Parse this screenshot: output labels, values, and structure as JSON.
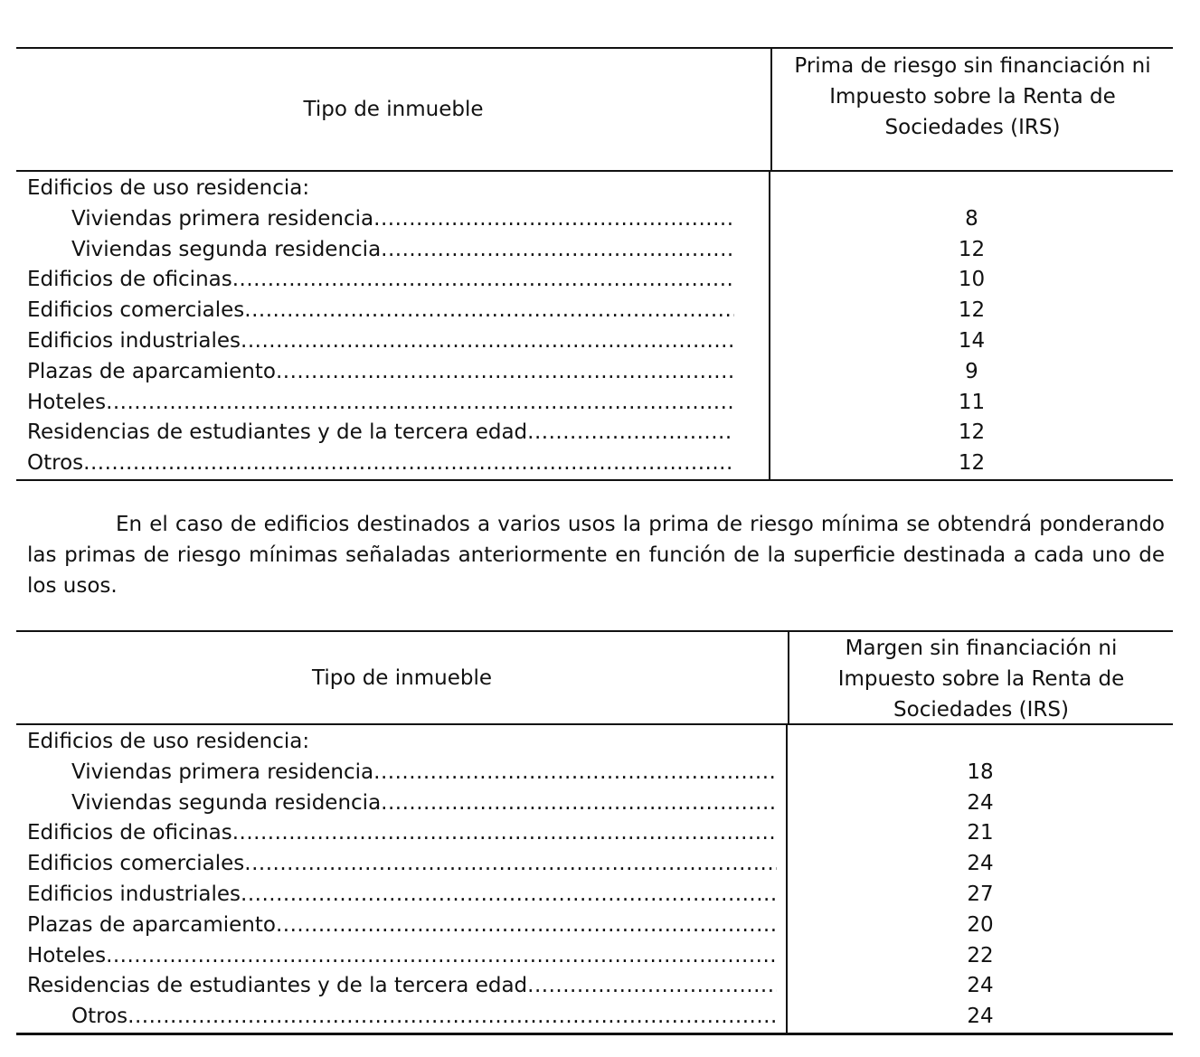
{
  "table1": {
    "header_col1": "Tipo de inmueble",
    "header_col2": "Prima de riesgo sin financiación ni Impuesto sobre la Renta de Sociedades (IRS)",
    "rows": [
      {
        "label": "Edificios de uso residencia:",
        "value": "",
        "leader": false,
        "indent": false
      },
      {
        "label": "Viviendas primera residencia",
        "value": "8",
        "leader": true,
        "indent": true
      },
      {
        "label": "Viviendas segunda residencia",
        "value": "12",
        "leader": true,
        "indent": true
      },
      {
        "label": "Edificios de oficinas",
        "value": "10",
        "leader": true,
        "indent": false
      },
      {
        "label": "Edificios comerciales",
        "value": "12",
        "leader": true,
        "indent": false
      },
      {
        "label": "Edificios industriales",
        "value": "14",
        "leader": true,
        "indent": false
      },
      {
        "label": "Plazas de aparcamiento",
        "value": "9",
        "leader": true,
        "indent": false
      },
      {
        "label": "Hoteles",
        "value": "11",
        "leader": true,
        "indent": false
      },
      {
        "label": "Residencias de estudiantes y de la tercera edad",
        "value": "12",
        "leader": true,
        "indent": false
      },
      {
        "label": "Otros",
        "value": "12",
        "leader": true,
        "indent": false
      }
    ]
  },
  "paragraph": "En el caso de edificios destinados a varios usos la prima de riesgo mínima se obtendrá ponderando las primas de riesgo mínimas señaladas anteriormente en función de la superficie destinada a cada uno de los usos.",
  "table2": {
    "header_col1": "Tipo de inmueble",
    "header_col2": "Margen sin financiación ni Impuesto sobre la Renta de Sociedades (IRS)",
    "rows": [
      {
        "label": "Edificios de uso residencia:",
        "value": "",
        "leader": false,
        "indent": false
      },
      {
        "label": "Viviendas primera residencia",
        "value": "18",
        "leader": true,
        "indent": true
      },
      {
        "label": "Viviendas segunda residencia",
        "value": "24",
        "leader": true,
        "indent": true
      },
      {
        "label": "Edificios de oficinas",
        "value": "21",
        "leader": true,
        "indent": false
      },
      {
        "label": "Edificios comerciales",
        "value": "24",
        "leader": true,
        "indent": false
      },
      {
        "label": "Edificios industriales",
        "value": "27",
        "leader": true,
        "indent": false
      },
      {
        "label": "Plazas de aparcamiento",
        "value": "20",
        "leader": true,
        "indent": false
      },
      {
        "label": "Hoteles",
        "value": "22",
        "leader": true,
        "indent": false
      },
      {
        "label": "Residencias de estudiantes y de la tercera edad",
        "value": "24",
        "leader": true,
        "indent": false
      },
      {
        "label": "Otros",
        "value": "24",
        "leader": true,
        "indent": true
      }
    ]
  }
}
